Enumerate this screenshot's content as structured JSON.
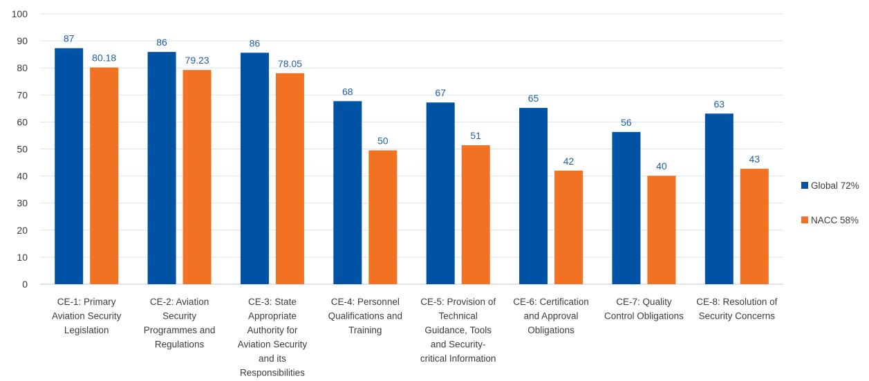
{
  "chart_data": {
    "type": "bar",
    "title": "",
    "xlabel": "",
    "ylabel": "",
    "ylim": [
      0,
      100
    ],
    "yticks": [
      0,
      10,
      20,
      30,
      40,
      50,
      60,
      70,
      80,
      90,
      100
    ],
    "grid": true,
    "legend_position": "right",
    "categories": [
      [
        "CE-1: Primary",
        "Aviation Security",
        "Legislation"
      ],
      [
        "CE-2: Aviation",
        "Security",
        "Programmes and",
        "Regulations"
      ],
      [
        "CE-3: State",
        "Appropriate",
        "Authority for",
        "Aviation Security",
        "and its",
        "Responsibilities"
      ],
      [
        "CE-4: Personnel",
        "Qualifications and",
        "Training"
      ],
      [
        "CE-5: Provision of",
        "Technical",
        "Guidance, Tools",
        "and Security-",
        "critical Information"
      ],
      [
        "CE-6: Certification",
        "and Approval",
        "Obligations"
      ],
      [
        "CE-7: Quality",
        "Control Obligations"
      ],
      [
        "CE-8: Resolution of",
        "Security Concerns"
      ]
    ],
    "series": [
      {
        "name": "Global 72%",
        "color": "#0052A5",
        "values": [
          87.3,
          85.9,
          85.6,
          67.7,
          67.2,
          65.2,
          56.3,
          63.1
        ],
        "labels": [
          "87",
          "86",
          "86",
          "68",
          "67",
          "65",
          "56",
          "63"
        ]
      },
      {
        "name": "NACC 58%",
        "color": "#F07222",
        "values": [
          80.18,
          79.23,
          78.05,
          49.5,
          51.4,
          42.0,
          40.1,
          42.7
        ],
        "labels": [
          "80.18",
          "79.23",
          "78.05",
          "50",
          "51",
          "42",
          "40",
          "43"
        ]
      }
    ]
  },
  "colors": {
    "value_label": "#1f5fa8",
    "grid": "#d9e4f0",
    "axis": "#bcc9d8"
  }
}
